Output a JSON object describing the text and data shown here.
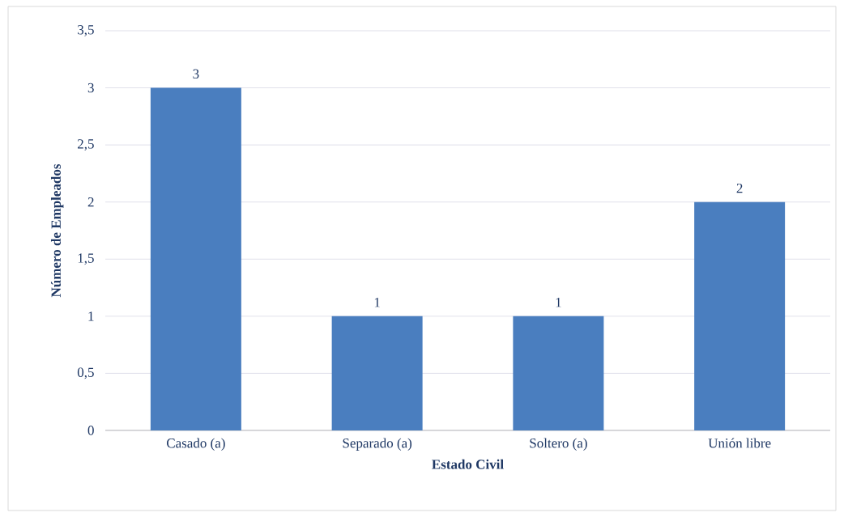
{
  "chart_data": {
    "type": "bar",
    "xlabel": "Estado Civil",
    "ylabel": "Número de Empleados",
    "categories": [
      "Casado (a)",
      "Separado (a)",
      "Soltero (a)",
      "Unión libre"
    ],
    "values": [
      3,
      1,
      1,
      2
    ],
    "value_labels": [
      "3",
      "1",
      "1",
      "2"
    ],
    "color": "#4a7ebf",
    "ylim": [
      0,
      3.5
    ],
    "yticks": [
      0,
      {
        "value": 0.5,
        "label": "0,5"
      },
      1,
      {
        "value": 1.5,
        "label": "1,5"
      },
      2,
      {
        "value": 2.5,
        "label": "2,5"
      },
      3,
      {
        "value": 3.5,
        "label": "3,5"
      }
    ],
    "grid": "y"
  }
}
